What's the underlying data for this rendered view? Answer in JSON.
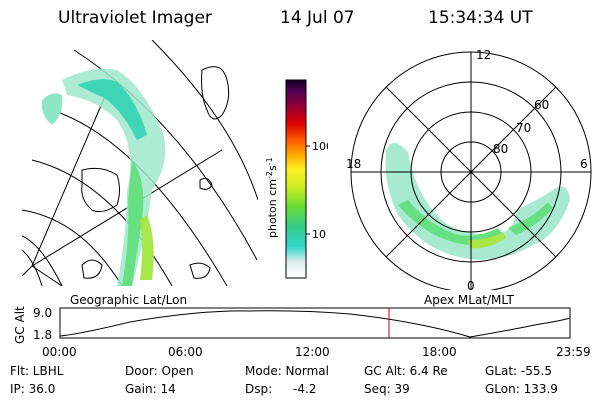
{
  "header": {
    "title": "Ultraviolet Imager",
    "date": "14 Jul 07",
    "time": "15:34:34 UT"
  },
  "colorbar": {
    "label": "photon cm",
    "label_sup1": "-2",
    "label_mid": "s",
    "label_sup2": "-1",
    "tick_100": "100",
    "tick_10": "10"
  },
  "polar_plot": {
    "mlt_labels": {
      "top": "12",
      "left": "18",
      "right": "6",
      "bottom": "0"
    },
    "lat_labels": {
      "l60": "60",
      "l70": "70",
      "l80": "80"
    }
  },
  "panel_labels": {
    "geo": "Geographic Lat/Lon",
    "apex": "Apex MLat/MLT"
  },
  "altitude_plot": {
    "ylabel": "GC Alt",
    "y_top": "9.0",
    "y_bottom": "1.8",
    "x_ticks": [
      "00:00",
      "06:00",
      "12:00",
      "18:00",
      "23:59"
    ]
  },
  "info": {
    "row1": {
      "flt": "Flt: LBHL",
      "door": "Door: Open",
      "mode": "Mode: Normal",
      "gcalt": "GC Alt: 6.4 Re",
      "glat": "GLat: -55.5"
    },
    "row2": {
      "ip": "IP: 36.0",
      "gain": "Gain: 14",
      "dsp_label": "Dsp:",
      "dsp_value": "-4.2",
      "seq": "Seq: 39",
      "glon": "GLon: 133.9"
    }
  },
  "colors": {
    "marker": "#cc0000"
  }
}
